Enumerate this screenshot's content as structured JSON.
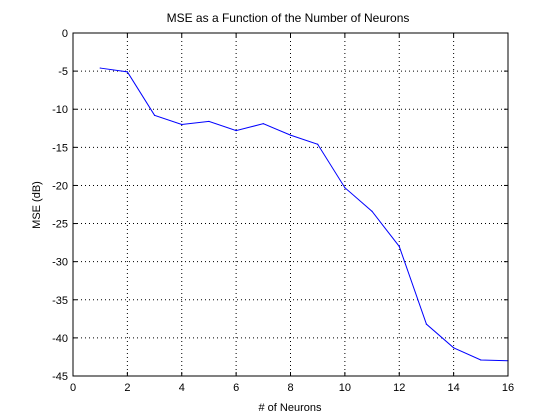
{
  "chart_data": {
    "type": "line",
    "title": "MSE as a Function of the Number of Neurons",
    "xlabel": "# of Neurons",
    "ylabel": "MSE (dB)",
    "xlim": [
      0,
      16
    ],
    "ylim": [
      -45,
      0
    ],
    "xticks": [
      0,
      2,
      4,
      6,
      8,
      10,
      12,
      14,
      16
    ],
    "yticks": [
      0,
      -5,
      -10,
      -15,
      -20,
      -25,
      -30,
      -35,
      -40,
      -45
    ],
    "grid": true,
    "grid_style": "dotted",
    "series": [
      {
        "color": "#0000ff",
        "x": [
          1,
          2,
          3,
          4,
          5,
          6,
          7,
          8,
          9,
          10,
          11,
          12,
          13,
          14,
          15,
          16
        ],
        "y": [
          -4.6,
          -5.1,
          -10.8,
          -12.0,
          -11.6,
          -12.8,
          -11.9,
          -13.4,
          -14.6,
          -20.3,
          -23.4,
          -28.0,
          -38.2,
          -41.3,
          -42.9,
          -43.0
        ]
      }
    ]
  }
}
